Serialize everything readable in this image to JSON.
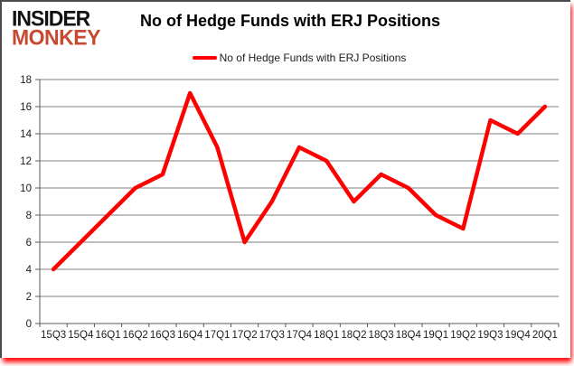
{
  "branding": {
    "logo_line1": "INSIDER",
    "logo_line2": "MONKEY",
    "logo_color_primary": "#121212",
    "logo_color_secondary": "#c7492f"
  },
  "header": {
    "title": "No of Hedge Funds with ERJ Positions"
  },
  "legend": {
    "label": "No of Hedge Funds with ERJ Positions",
    "swatch_color": "#fe0000"
  },
  "chart_data": {
    "type": "line",
    "title": "No of Hedge Funds with ERJ Positions",
    "categories": [
      "15Q3",
      "15Q4",
      "16Q1",
      "16Q2",
      "16Q3",
      "16Q4",
      "17Q1",
      "17Q2",
      "17Q3",
      "17Q4",
      "18Q1",
      "18Q2",
      "18Q3",
      "18Q4",
      "19Q1",
      "19Q2",
      "19Q3",
      "19Q4",
      "20Q1"
    ],
    "series": [
      {
        "name": "No of Hedge Funds with ERJ Positions",
        "values": [
          4,
          6,
          8,
          10,
          11,
          17,
          13,
          6,
          9,
          13,
          12,
          9,
          11,
          10,
          8,
          7,
          15,
          14,
          16
        ],
        "color": "#fe0000"
      }
    ],
    "xlabel": "",
    "ylabel": "",
    "ylim": [
      0,
      18
    ],
    "ytick_step": 2,
    "grid": true,
    "legend_position": "top",
    "colors": {
      "gridline": "#7f7f7f",
      "axis_line": "#595959",
      "tick_label": "#1c1c1c",
      "plot_background": "#ffffff"
    }
  }
}
